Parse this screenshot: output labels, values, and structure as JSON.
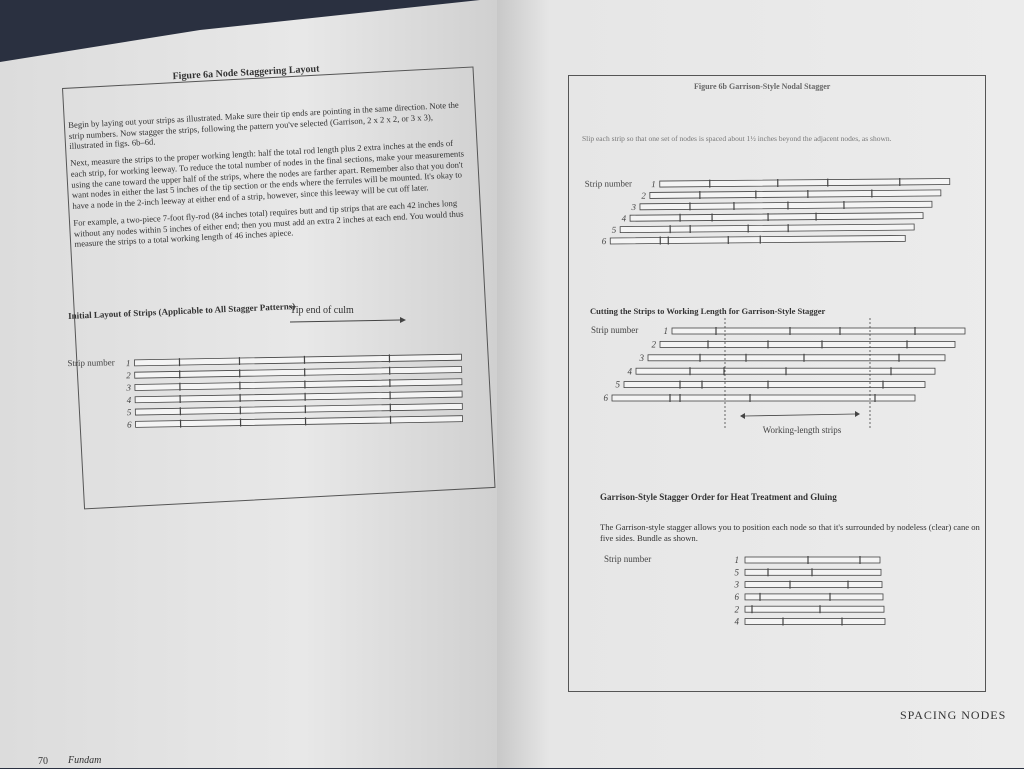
{
  "left_page": {
    "figure_title": "Figure 6a   Node Staggering Layout",
    "paragraphs": [
      "Begin by laying out your strips as illustrated. Make sure their tip ends are pointing in the same direction. Note the strip numbers. Now stagger the strips, following the pattern you've selected (Garrison, 2 x 2 x 2, or 3 x 3), illustrated in figs. 6b–6d.",
      "Next, measure the strips to the proper working length: half the total rod length plus 2 extra inches at the ends of each strip, for working leeway. To reduce the total number of nodes in the final sections, make your measurements using the cane toward the upper half of the strips, where the nodes are farther apart. Remember also that you don't want nodes in either the last 5 inches of the tip section or the ends where the ferrules will be mounted. It's okay to have a node in the 2-inch leeway at either end of a strip, however, since this leeway will be cut off later.",
      "For example, a two-piece 7-foot fly-rod (84 inches total) requires butt and tip strips that are each 42 inches long without any nodes within 5 inches of either end; then you must add an extra 2 inches at each end. You would thus measure the strips to a total working length of 46 inches apiece."
    ],
    "diagram_title": "Initial Layout of Strips (Applicable to All Stagger Patterns)",
    "arrow_label": "Tip end of culm",
    "strip_label": "Strip number",
    "strip_numbers": [
      "1",
      "2",
      "3",
      "4",
      "5",
      "6"
    ]
  },
  "right_page": {
    "figure_title": "Figure 6b   Garrison-Style Nodal Stagger",
    "intro": "Slip each strip so that one set of nodes is spaced about 1½ inches beyond the adjacent nodes, as shown.",
    "strip_label": "Strip number",
    "strip_numbers": [
      "1",
      "2",
      "3",
      "4",
      "5",
      "6"
    ],
    "cutting_title": "Cutting the Strips to Working Length for Garrison-Style Stagger",
    "cutting_strip_label": "Strip number",
    "cutting_numbers": [
      "1",
      "2",
      "3",
      "4",
      "5",
      "6"
    ],
    "working_label": "Working-length strips",
    "order_title": "Garrison-Style Stagger Order for Heat Treatment and Gluing",
    "order_text": "The Garrison-style stagger allows you to position each node so that it's surrounded by nodeless (clear) cane on five sides. Bundle as shown.",
    "order_strip_label": "Strip number",
    "order_numbers": [
      "1",
      "5",
      "3",
      "6",
      "2",
      "4"
    ]
  },
  "footer": {
    "page_number": "70",
    "running_title": "Fundam",
    "section": "SPACING NODES"
  }
}
